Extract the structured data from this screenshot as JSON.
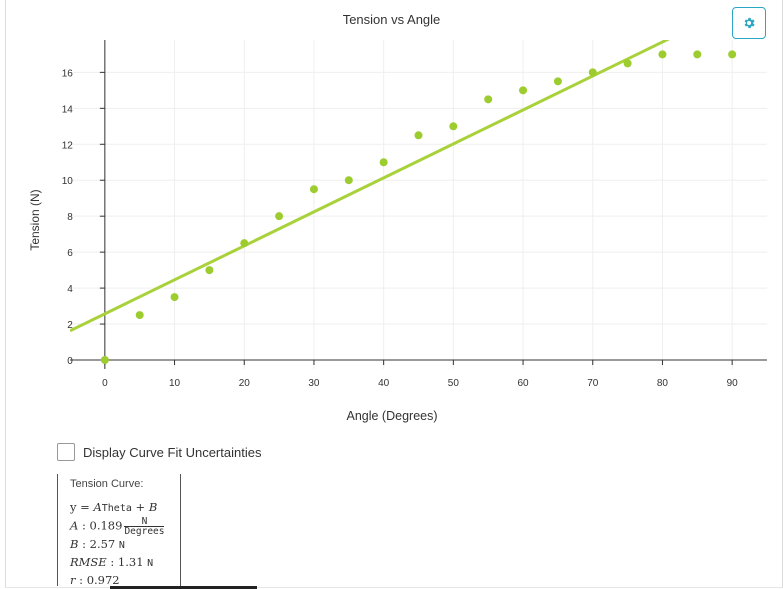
{
  "chart_data": {
    "type": "scatter",
    "title": "Tension vs Angle",
    "xlabel": "Angle (Degrees)",
    "ylabel": "Tension (N)",
    "xlim": [
      -5,
      95
    ],
    "ylim": [
      -0.5,
      17.8
    ],
    "x_ticks": [
      0,
      10,
      20,
      30,
      40,
      50,
      60,
      70,
      80,
      90
    ],
    "y_ticks": [
      0,
      2,
      4,
      6,
      8,
      10,
      12,
      14,
      16
    ],
    "grid": true,
    "series": [
      {
        "x": [
          0,
          5,
          10,
          15,
          20,
          25,
          30,
          35,
          40,
          45,
          50,
          55,
          60,
          65,
          70,
          75,
          80,
          85,
          90
        ],
        "y": [
          0,
          2.5,
          3.5,
          5,
          6.5,
          8,
          9.5,
          10,
          11,
          12.5,
          13,
          14.5,
          15,
          15.5,
          16,
          16.5,
          17,
          17,
          17
        ],
        "color": "#9ccc2e"
      }
    ],
    "fit_line": {
      "slope": 0.189,
      "intercept": 2.57,
      "color": "#a8d13a"
    }
  },
  "settings_icon": "gear-icon",
  "accent_color": "#2ba7c4",
  "uncertainty_toggle": {
    "label": "Display Curve Fit Uncertainties",
    "checked": false
  },
  "fit_panel": {
    "heading": "Tension Curve:",
    "equation": {
      "y": "y",
      "rhs_a": "A",
      "rhs_var": "Theta",
      "rhs_b": "B"
    },
    "params": {
      "A": {
        "name": "A",
        "value": "0.189",
        "unit_num": "N",
        "unit_den": "Degrees"
      },
      "B": {
        "name": "B",
        "value": "2.57",
        "unit": "N"
      },
      "RMSE": {
        "name": "RMSE",
        "value": "1.31",
        "unit": "N"
      },
      "r": {
        "name": "r",
        "value": "0.972"
      }
    }
  }
}
